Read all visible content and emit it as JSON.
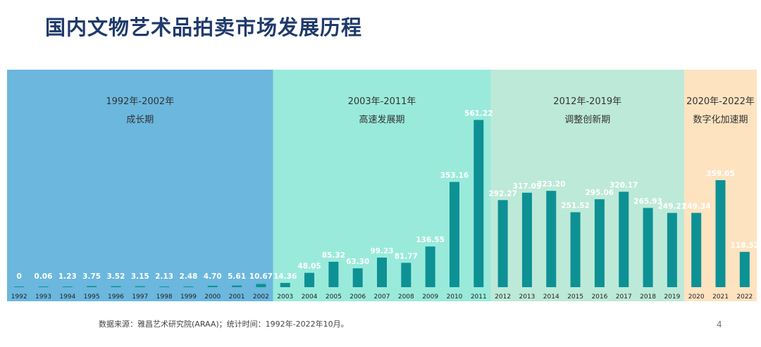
{
  "page": {
    "title": "国内文物艺术品拍卖市场发展历程",
    "source": "数据来源：雅昌艺术研究院(ARAA)；统计时间：1992年-2022年10月。",
    "page_number": "4"
  },
  "chart_data": {
    "type": "bar",
    "title": "国内文物艺术品拍卖市场发展历程",
    "xlabel": "",
    "ylabel": "",
    "ylim": [
      0,
      600
    ],
    "categories": [
      "1992",
      "1993",
      "1994",
      "1995",
      "1996",
      "1997",
      "1998",
      "1999",
      "2000",
      "2001",
      "2002",
      "2003",
      "2004",
      "2005",
      "2006",
      "2007",
      "2008",
      "2009",
      "2010",
      "2011",
      "2012",
      "2013",
      "2014",
      "2015",
      "2016",
      "2017",
      "2018",
      "2019",
      "2020",
      "2021",
      "2022"
    ],
    "values": [
      0,
      0.06,
      1.23,
      3.75,
      3.52,
      3.15,
      2.13,
      2.48,
      4.7,
      5.61,
      10.67,
      14.36,
      48.05,
      85.32,
      63.3,
      99.23,
      81.77,
      136.55,
      353.16,
      561.22,
      292.27,
      317.05,
      323.2,
      251.52,
      295.06,
      320.17,
      265.93,
      249.21,
      249.34,
      359.05,
      118.52
    ],
    "value_labels": [
      "0",
      "0.06",
      "1.23",
      "3.75",
      "3.52",
      "3.15",
      "2.13",
      "2.48",
      "4.70",
      "5.61",
      "10.67",
      "14.36",
      "48.05",
      "85.32",
      "63.30",
      "99.23",
      "81.77",
      "136.55",
      "353.16",
      "561.22",
      "292.27",
      "317.05",
      "323.20",
      "251.52",
      "295.06",
      "320.17",
      "265.93",
      "249.21",
      "249.34",
      "359.05",
      "118.52"
    ],
    "bar_color": "#0d9194",
    "periods": [
      {
        "range": "1992年-2002年",
        "name": "成长期",
        "start": "1992",
        "end": "2002",
        "color": "#6bb7de"
      },
      {
        "range": "2003年-2011年",
        "name": "高速发展期",
        "start": "2003",
        "end": "2011",
        "color": "#9aeadb"
      },
      {
        "range": "2012年-2019年",
        "name": "调整创新期",
        "start": "2012",
        "end": "2019",
        "color": "#bde9d8"
      },
      {
        "range": "2020年-2022年",
        "name": "数字化加速期",
        "start": "2020",
        "end": "2022",
        "color": "#fde3c0"
      }
    ]
  }
}
